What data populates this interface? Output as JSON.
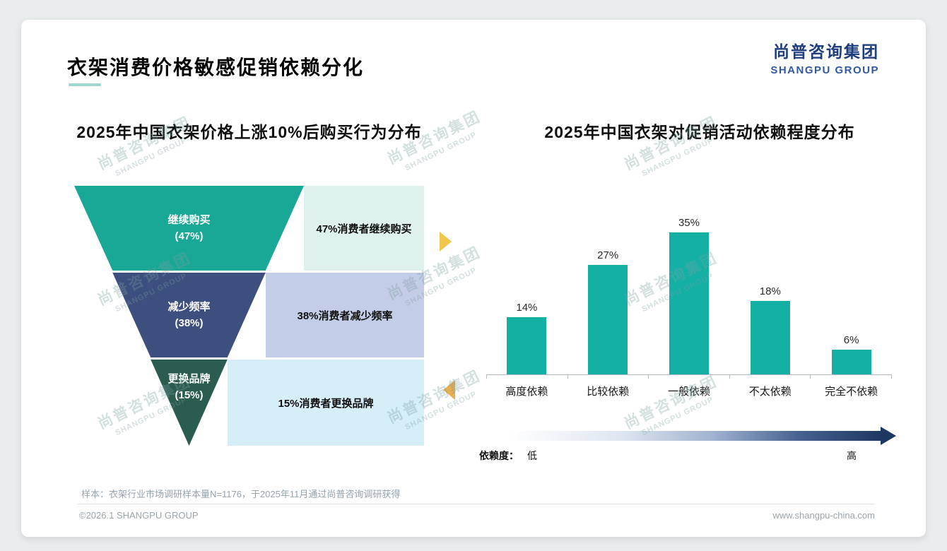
{
  "page": {
    "title": "衣架消费价格敏感促销依赖分化",
    "logo": {
      "cn": "尚普咨询集团",
      "en": "SHANGPU GROUP"
    },
    "watermark": {
      "cn": "尚普咨询集团",
      "en": "SHANGPU GROUP"
    },
    "footnote": "样本：衣架行业市场调研样本量N=1176，于2025年11月通过尚普咨询调研获得",
    "footer": {
      "copyright": "©2026.1 SHANGPU GROUP",
      "website": "www.shangpu-china.com"
    }
  },
  "chart_data": [
    {
      "type": "funnel",
      "title": "2025年中国衣架价格上涨10%后购买行为分布",
      "segments": [
        {
          "name": "继续购买",
          "pct": "(47%)",
          "value": 47,
          "annotation": "47%消费者继续购买",
          "color": "#1aa896",
          "annotation_bg": "#def1ed"
        },
        {
          "name": "减少频率",
          "pct": "(38%)",
          "value": 38,
          "annotation": "38%消费者减少频率",
          "color": "#3d4f7e",
          "annotation_bg": "#c4cde8"
        },
        {
          "name": "更换品牌",
          "pct": "(15%)",
          "value": 15,
          "annotation": "15%消费者更换品牌",
          "color": "#2a5c4f",
          "annotation_bg": "#d6eef7"
        }
      ],
      "arrow_colors": {
        "right": "#f2c54b",
        "left": "#e9ae4d"
      }
    },
    {
      "type": "bar",
      "title": "2025年中国衣架对促销活动依赖程度分布",
      "categories": [
        "高度依赖",
        "比较依赖",
        "一般依赖",
        "不太依赖",
        "完全不依赖"
      ],
      "values": [
        14,
        27,
        35,
        18,
        6
      ],
      "value_labels": [
        "14%",
        "27%",
        "35%",
        "18%",
        "6%"
      ],
      "bar_color": "#14b0a4",
      "ylim": [
        0,
        40
      ],
      "legend": {
        "label": "依赖度：",
        "low": "低",
        "high": "高"
      }
    }
  ]
}
